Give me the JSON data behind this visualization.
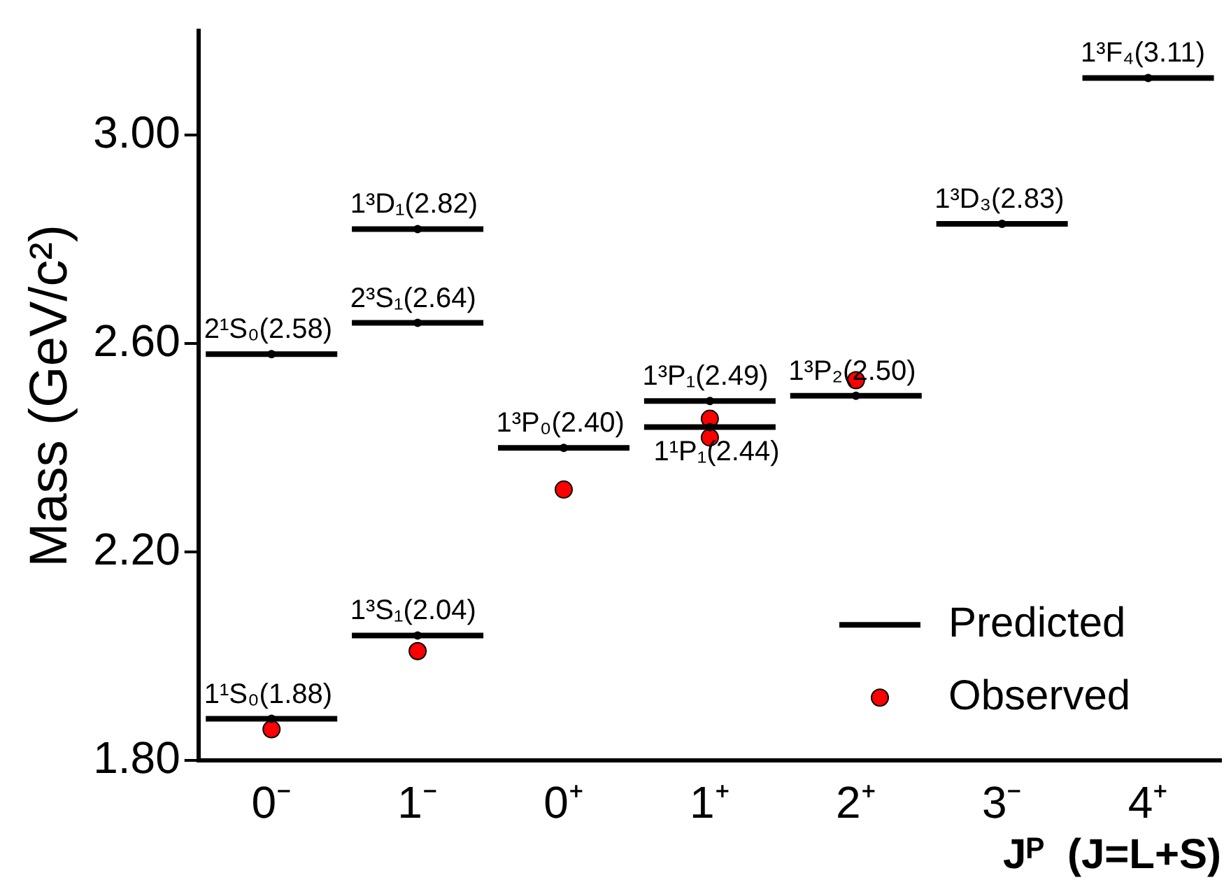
{
  "chart_data": {
    "type": "scatter",
    "ylabel": "Mass (GeV/c²)",
    "xlabel": "Jᴾ  (J=L+S)",
    "categories": [
      "0⁻",
      "1⁻",
      "0⁺",
      "1⁺",
      "2⁺",
      "3⁻",
      "4⁺"
    ],
    "ylim": [
      1.8,
      3.2
    ],
    "yticks": [
      {
        "value": 1.8,
        "label": "1.80"
      },
      {
        "value": 2.2,
        "label": "2.20"
      },
      {
        "value": 2.6,
        "label": "2.60"
      },
      {
        "value": 3.0,
        "label": "3.00"
      }
    ],
    "grid": false,
    "legend": "bottom right",
    "series": [
      {
        "name": "Predicted",
        "color": "#000000",
        "x": [
          "0⁻",
          "0⁻",
          "1⁻",
          "1⁻",
          "1⁻",
          "0⁺",
          "1⁺",
          "1⁺",
          "2⁺",
          "3⁻",
          "4⁺"
        ],
        "values": [
          1.88,
          2.58,
          2.04,
          2.64,
          2.82,
          2.4,
          2.44,
          2.49,
          2.5,
          2.83,
          3.11
        ]
      },
      {
        "name": "Observed",
        "marker": "circle",
        "color": "#ff0000",
        "x": [
          "0⁻",
          "1⁻",
          "0⁺",
          "1⁺",
          "1⁺",
          "2⁺"
        ],
        "values": [
          1.86,
          2.01,
          2.32,
          2.42,
          2.456,
          2.53
        ]
      }
    ],
    "annotations": [
      {
        "text": "1¹S₀(1.88)",
        "x": "0⁻",
        "y": 1.88
      },
      {
        "text": "2¹S₀(2.58)",
        "x": "0⁻",
        "y": 2.58
      },
      {
        "text": "1³S₁(2.04)",
        "x": "1⁻",
        "y": 2.04
      },
      {
        "text": "2³S₁(2.64)",
        "x": "1⁻",
        "y": 2.64
      },
      {
        "text": "1³D₁(2.82)",
        "x": "1⁻",
        "y": 2.82
      },
      {
        "text": "1³P₀(2.40)",
        "x": "0⁺",
        "y": 2.4
      },
      {
        "text": "1¹P₁(2.44)",
        "x": "1⁺",
        "y": 2.44
      },
      {
        "text": "1³P₁(2.49)",
        "x": "1⁺",
        "y": 2.49
      },
      {
        "text": "1³P₂(2.50)",
        "x": "2⁺",
        "y": 2.5
      },
      {
        "text": "1³D₃(2.83)",
        "x": "3⁻",
        "y": 2.83
      },
      {
        "text": "1³F₄(3.11)",
        "x": "4⁺",
        "y": 3.11
      }
    ]
  }
}
